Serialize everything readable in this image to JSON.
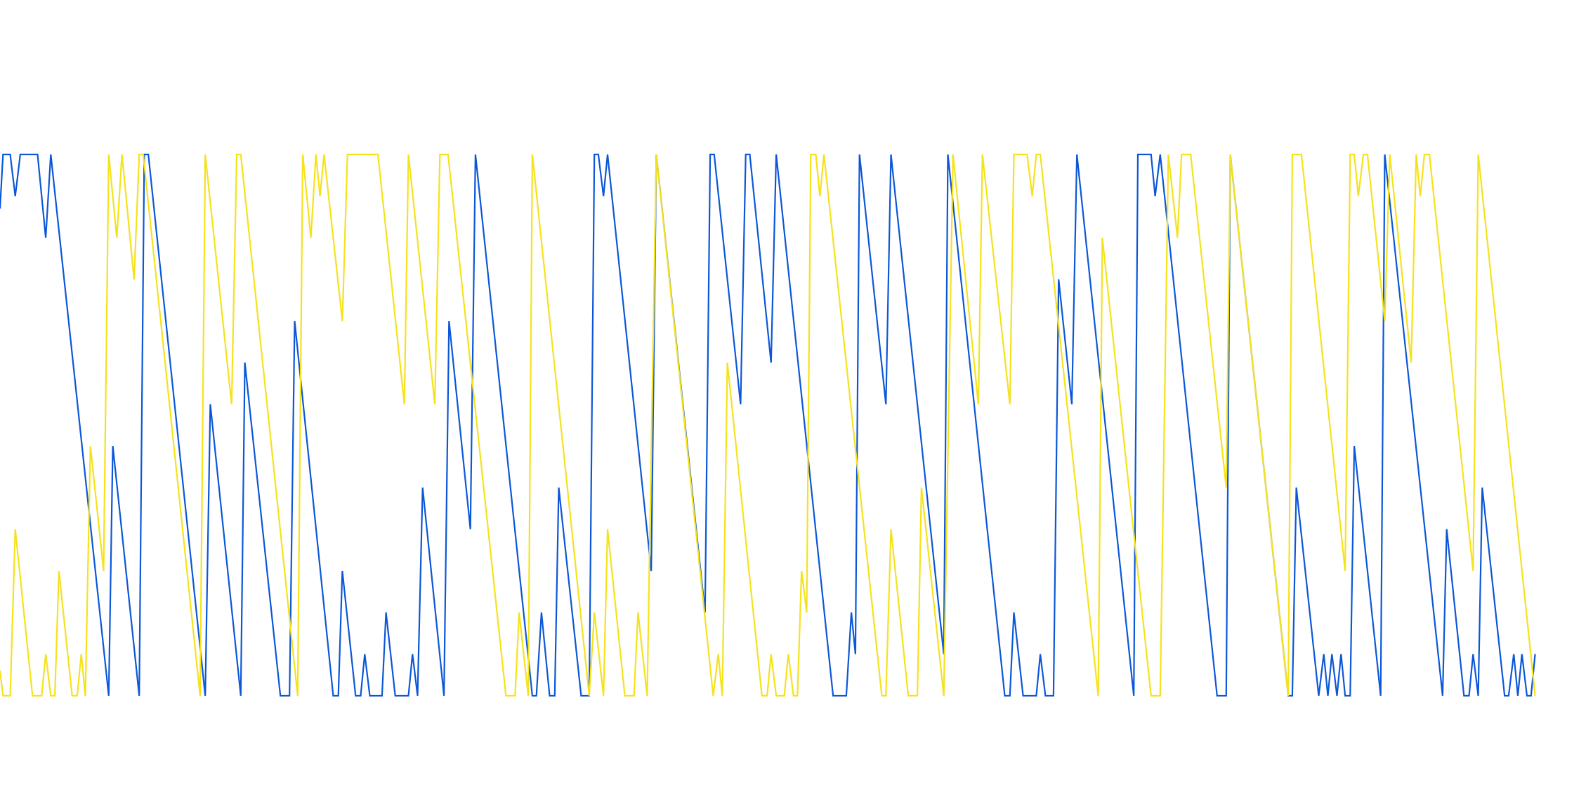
{
  "chart_data": {
    "type": "line",
    "xlim": [
      0,
      1512
    ],
    "ylim": [
      0,
      13
    ],
    "series": [
      {
        "color": "#0b57d8",
        "x": [
          0,
          3,
          10,
          15,
          20,
          37,
          45,
          50,
          107,
          111,
          137,
          142,
          146,
          202,
          207,
          237,
          241,
          276,
          285,
          290,
          328,
          333,
          337,
          350,
          355,
          359,
          364,
          376,
          380,
          389,
          402,
          406,
          411,
          416,
          437,
          442,
          463,
          468,
          524,
          528,
          533,
          541,
          546,
          550,
          572,
          580,
          585,
          589,
          594,
          598,
          641,
          646,
          694,
          699,
          703,
          729,
          734,
          738,
          759,
          764,
          820,
          833,
          838,
          842,
          846,
          872,
          877,
          929,
          933,
          989,
          994,
          998,
          1007,
          1020,
          1024,
          1029,
          1037,
          1042,
          1055,
          1060,
          1116,
          1120,
          1133,
          1137,
          1142,
          1198,
          1207,
          1211,
          1268,
          1272,
          1276,
          1298,
          1303,
          1307,
          1311,
          1316,
          1320,
          1324,
          1329,
          1333,
          1359,
          1363,
          1420,
          1424,
          1441,
          1446,
          1450,
          1455,
          1459,
          1481,
          1485,
          1490,
          1494,
          1498,
          1503,
          1507,
          1511
        ],
        "values": [
          11.7,
          13,
          13,
          12,
          13,
          13,
          11,
          13,
          0,
          6,
          0,
          13,
          13,
          0,
          7,
          0,
          8,
          0,
          0,
          9,
          0,
          0,
          3,
          0,
          0,
          1,
          0,
          0,
          2,
          0,
          0,
          1,
          0,
          5,
          0,
          9,
          4,
          13,
          0,
          0,
          2,
          0,
          0,
          5,
          0,
          0,
          13,
          13,
          12,
          13,
          3,
          13,
          2,
          13,
          13,
          7,
          13,
          13,
          8,
          13,
          0,
          0,
          2,
          1,
          13,
          7,
          13,
          1,
          13,
          0,
          0,
          2,
          0,
          0,
          1,
          0,
          0,
          10,
          7,
          13,
          0,
          13,
          13,
          12,
          13,
          0,
          0,
          13,
          0,
          0,
          5,
          0,
          1,
          0,
          1,
          0,
          1,
          0,
          0,
          6,
          0,
          13,
          0,
          4,
          0,
          0,
          1,
          0,
          5,
          0,
          0,
          1,
          0,
          1,
          0,
          0,
          1
        ]
      },
      {
        "color": "#f6e21c",
        "x": [
          0,
          3,
          10,
          15,
          32,
          41,
          45,
          50,
          54,
          58,
          71,
          76,
          80,
          84,
          89,
          102,
          107,
          115,
          120,
          132,
          137,
          141,
          197,
          202,
          228,
          233,
          237,
          293,
          298,
          306,
          311,
          315,
          319,
          337,
          342,
          372,
          398,
          402,
          428,
          433,
          441,
          498,
          507,
          511,
          520,
          524,
          580,
          585,
          594,
          598,
          615,
          624,
          628,
          637,
          646,
          702,
          707,
          711,
          716,
          750,
          755,
          759,
          764,
          772,
          776,
          781,
          785,
          789,
          794,
          798,
          803,
          807,
          811,
          868,
          872,
          877,
          894,
          903,
          907,
          929,
          938,
          963,
          967,
          994,
          998,
          1011,
          1016,
          1020,
          1024,
          1081,
          1085,
          1133,
          1142,
          1150,
          1159,
          1163,
          1172,
          1207,
          1211,
          1268,
          1272,
          1281,
          1324,
          1329,
          1333,
          1337,
          1342,
          1346,
          1363,
          1368,
          1389,
          1394,
          1398,
          1402,
          1407,
          1450,
          1455,
          1511
        ],
        "values": [
          0.6,
          0,
          0,
          4,
          0,
          0,
          1,
          0,
          0,
          3,
          0,
          0,
          1,
          0,
          6,
          3,
          13,
          11,
          13,
          10,
          13,
          13,
          0,
          13,
          7,
          13,
          13,
          0,
          13,
          11,
          13,
          12,
          13,
          9,
          13,
          13,
          7,
          13,
          7,
          13,
          13,
          0,
          0,
          2,
          0,
          13,
          0,
          2,
          0,
          4,
          0,
          0,
          2,
          0,
          13,
          0,
          1,
          0,
          8,
          0,
          0,
          1,
          0,
          0,
          1,
          0,
          0,
          3,
          2,
          13,
          13,
          12,
          13,
          0,
          0,
          4,
          0,
          0,
          5,
          0,
          13,
          7,
          13,
          7,
          13,
          13,
          12,
          13,
          13,
          0,
          11,
          0,
          0,
          13,
          11,
          13,
          13,
          5,
          13,
          0,
          13,
          13,
          3,
          13,
          13,
          12,
          13,
          13,
          9,
          13,
          8,
          13,
          12,
          13,
          13,
          3,
          13,
          0
        ]
      }
    ]
  }
}
